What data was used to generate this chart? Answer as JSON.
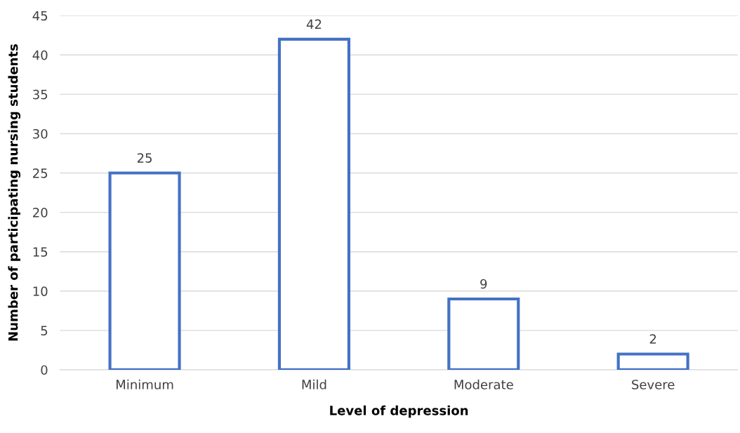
{
  "chart_data": {
    "type": "bar",
    "xlabel": "Level of depression",
    "ylabel": "Number of participating nursing students",
    "categories": [
      "Minimum",
      "Mild",
      "Moderate",
      "Severe"
    ],
    "values": [
      25,
      42,
      9,
      2
    ],
    "color": "#4472c4",
    "ylim": [
      0,
      45
    ],
    "yticks": [
      0,
      5,
      10,
      15,
      20,
      25,
      30,
      35,
      40,
      45
    ],
    "grid": "y",
    "data_labels": true
  }
}
